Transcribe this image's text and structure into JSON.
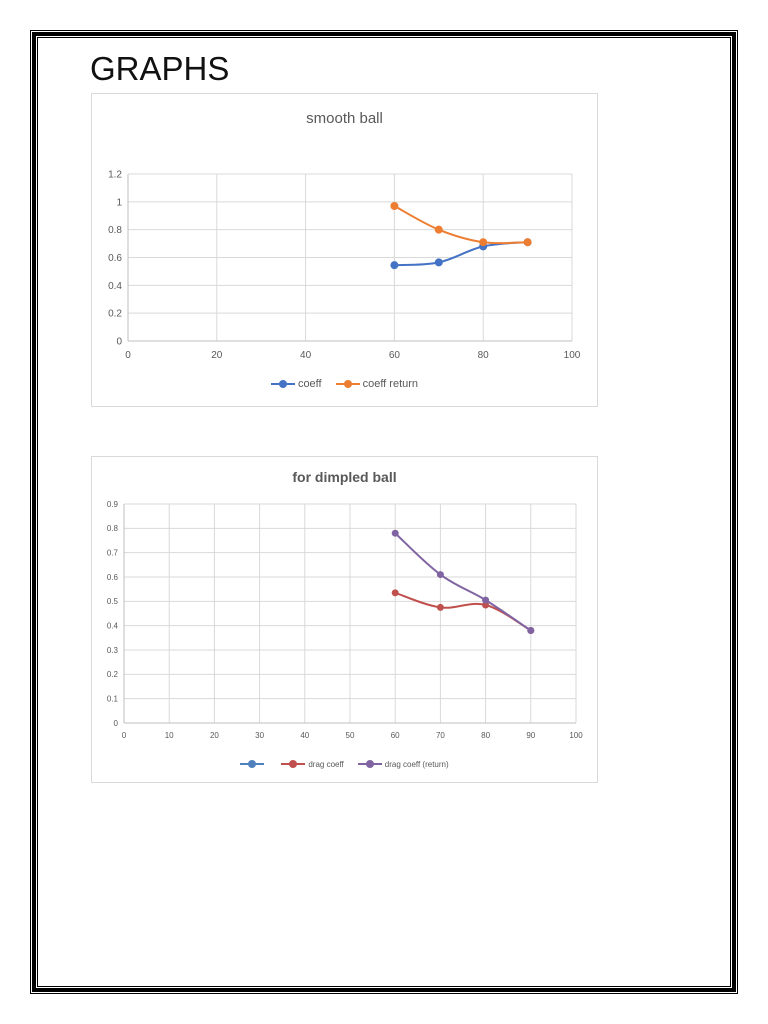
{
  "page": {
    "title": "GRAPHS"
  },
  "chart_data": [
    {
      "type": "line",
      "title": "smooth ball",
      "xlabel": "",
      "ylabel": "",
      "xlim": [
        0,
        100
      ],
      "ylim": [
        0,
        1.2
      ],
      "x_ticks": [
        "0",
        "20",
        "40",
        "60",
        "80",
        "100"
      ],
      "y_ticks": [
        "0",
        "0.2",
        "0.4",
        "0.6",
        "0.8",
        "1",
        "1.2"
      ],
      "grid": true,
      "legend_position": "bottom",
      "x": [
        60,
        70,
        80,
        90
      ],
      "series": [
        {
          "name": "coeff",
          "color": "#4472C4",
          "values": [
            0.545,
            0.565,
            0.68,
            0.71
          ]
        },
        {
          "name": "coeff return",
          "color": "#ED7D31",
          "values": [
            0.97,
            0.8,
            0.71,
            0.71
          ]
        }
      ]
    },
    {
      "type": "line",
      "title": "for dimpled ball",
      "xlabel": "",
      "ylabel": "",
      "xlim": [
        0,
        100
      ],
      "ylim": [
        0,
        0.9
      ],
      "x_ticks": [
        "0",
        "10",
        "20",
        "30",
        "40",
        "50",
        "60",
        "70",
        "80",
        "90",
        "100"
      ],
      "y_ticks": [
        "0",
        "0.1",
        "0.2",
        "0.3",
        "0.4",
        "0.5",
        "0.6",
        "0.7",
        "0.8",
        "0.9"
      ],
      "grid": true,
      "legend_position": "bottom",
      "x": [
        60,
        70,
        80,
        90
      ],
      "series": [
        {
          "name": "",
          "color": "#4F81BD",
          "values": []
        },
        {
          "name": "drag coeff",
          "color": "#C0504D",
          "values": [
            0.535,
            0.475,
            0.485,
            0.38
          ]
        },
        {
          "name": "drag coeff (return)",
          "color": "#8064A2",
          "values": [
            0.78,
            0.61,
            0.505,
            0.38
          ]
        }
      ]
    }
  ]
}
